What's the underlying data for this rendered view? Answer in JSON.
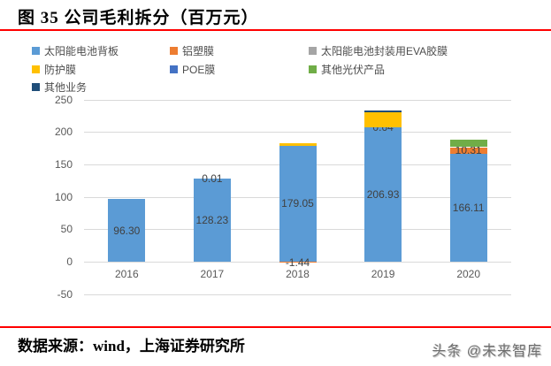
{
  "title": "图 35 公司毛利拆分（百万元）",
  "footer": {
    "source": "数据来源：wind，上海证券研究所",
    "watermark": "头条 @未来智库"
  },
  "colors": {
    "rule_red": "#FF0000",
    "grid": "#D9D9D9",
    "axis_text": "#595959",
    "value_label_text": "#404040"
  },
  "chart_data": {
    "type": "bar",
    "stacked": true,
    "title": "图 35 公司毛利拆分（百万元）",
    "xlabel": "",
    "ylabel": "",
    "categories": [
      "2016",
      "2017",
      "2018",
      "2019",
      "2020"
    ],
    "series": [
      {
        "name": "太阳能电池背板",
        "color": "#5B9BD5",
        "values": [
          96.3,
          128.23,
          179.05,
          206.93,
          166.11
        ],
        "show_labels": true
      },
      {
        "name": "铝塑膜",
        "color": "#ED7D31",
        "values": [
          null,
          0.01,
          -1.44,
          0.64,
          10.31
        ],
        "show_labels": true
      },
      {
        "name": "太阳能电池封装用EVA胶膜",
        "color": "#A5A5A5",
        "values": [
          0,
          0,
          0,
          0,
          0
        ],
        "show_labels": false
      },
      {
        "name": "防护膜",
        "color": "#FFC000",
        "values": [
          0,
          0,
          4,
          22,
          0
        ],
        "show_labels": false
      },
      {
        "name": "POE膜",
        "color": "#4472C4",
        "values": [
          0,
          0,
          0,
          0,
          0
        ],
        "show_labels": false
      },
      {
        "name": "其他光伏产品",
        "color": "#70AD47",
        "values": [
          0,
          0,
          0,
          0,
          12
        ],
        "show_labels": false
      },
      {
        "name": "其他业务",
        "color": "#1F4E79",
        "values": [
          0,
          0,
          0,
          3,
          0
        ],
        "show_labels": false
      }
    ],
    "yticks": [
      250,
      200,
      150,
      100,
      50,
      0,
      -50
    ],
    "ylim": [
      -50,
      250
    ],
    "grid": true,
    "legend_position": "top"
  }
}
